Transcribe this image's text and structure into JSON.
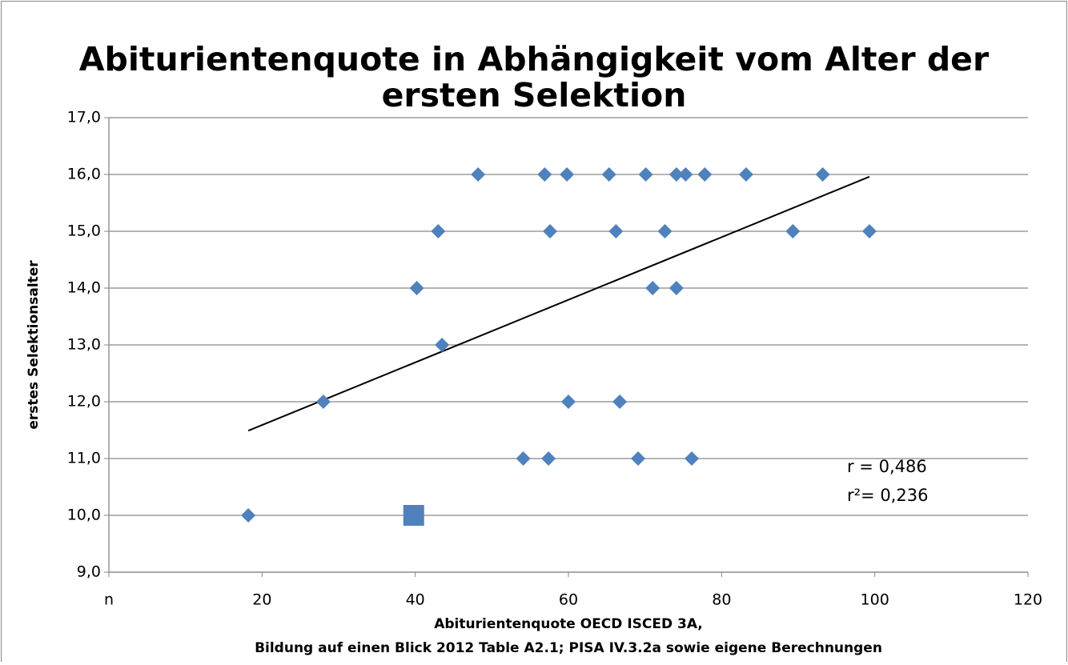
{
  "chart_data": {
    "type": "scatter",
    "title": [
      "Abiturientenquote in Abhängigkeit vom Alter der",
      "ersten Selektion"
    ],
    "x_label": [
      "Abiturientenquote OECD ISCED 3A,",
      "Bildung auf einen Blick 2012 Table A2.1; PISA IV.3.2a sowie eigene Berechnungen"
    ],
    "y_label": "erstes Selektionsalter",
    "annotations": [
      "r =  0,486",
      "r²=  0,236"
    ],
    "xlim": [
      0,
      120
    ],
    "xticks": [
      {
        "value": 0,
        "label": "n"
      },
      20,
      40,
      60,
      80,
      100,
      120
    ],
    "ylim": [
      9,
      17
    ],
    "yticks": [
      {
        "value": 9,
        "label": "9,0"
      },
      {
        "value": 10,
        "label": "10,0"
      },
      {
        "value": 11,
        "label": "11,0"
      },
      {
        "value": 12,
        "label": "12,0"
      },
      {
        "value": 13,
        "label": "13,0"
      },
      {
        "value": 14,
        "label": "14,0"
      },
      {
        "value": 15,
        "label": "15,0"
      },
      {
        "value": 16,
        "label": "16,0"
      },
      {
        "value": 17,
        "label": "17,0"
      }
    ],
    "grid": true,
    "series": [
      {
        "color": "#4f81bd",
        "marker": "diamond",
        "x": [
          48.2,
          56.9,
          59.8,
          65.3,
          70.1,
          74.1,
          75.3,
          77.8,
          83.2,
          93.2,
          43.0,
          57.6,
          66.2,
          72.6,
          89.3,
          99.3,
          40.2,
          71.0,
          74.1,
          43.5,
          28.0,
          60.0,
          66.7,
          54.1,
          57.4,
          69.1,
          76.1,
          18.2
        ],
        "values": [
          16,
          16,
          16,
          16,
          16,
          16,
          16,
          16,
          16,
          16,
          15,
          15,
          15,
          15,
          15,
          15,
          14,
          14,
          14,
          13,
          12,
          12,
          12,
          11,
          11,
          11,
          11,
          10
        ]
      },
      {
        "color": "#4f81bd",
        "marker": "square",
        "x": [
          39.8
        ],
        "values": [
          10
        ]
      }
    ],
    "trendline": {
      "color": "#000000",
      "x": [
        18.2,
        99.3
      ],
      "values": [
        11.49,
        15.96
      ]
    }
  }
}
